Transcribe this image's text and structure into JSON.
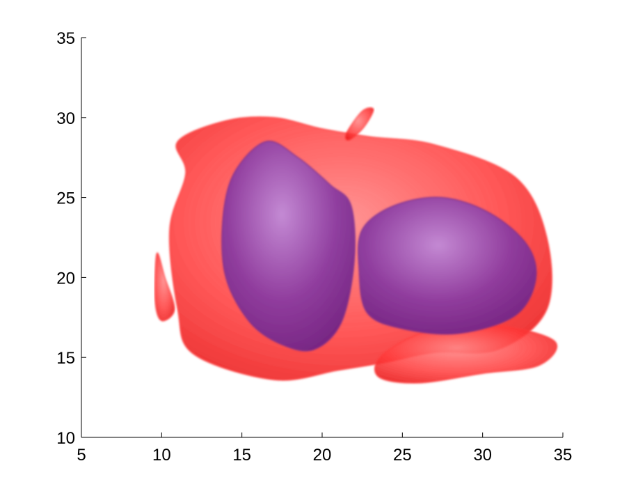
{
  "chart_data": {
    "type": "isosurface",
    "title": "",
    "xlabel": "",
    "ylabel": "",
    "xlim": [
      5,
      35
    ],
    "ylim": [
      10,
      35
    ],
    "xticks": [
      "5",
      "10",
      "15",
      "20",
      "25",
      "30",
      "35"
    ],
    "yticks": [
      "10",
      "15",
      "20",
      "25",
      "30",
      "35"
    ],
    "grid": false,
    "legend": "none",
    "colors": {
      "outer_surface": "#ff3a3a",
      "inner_surface": "#7a2b8f"
    },
    "surfaces": [
      {
        "layer": "outer",
        "color": "outer_surface",
        "regions": [
          {
            "x": [
              11,
              14,
              17,
              20,
              23,
              27,
              32,
              34,
              34,
              31,
              27,
              24,
              21,
              17,
              12,
              11,
              10.5,
              11.5
            ],
            "y": [
              28.5,
              29.8,
              30.0,
              29.3,
              28.8,
              28.3,
              26.3,
              22.5,
              18,
              15.5,
              15.3,
              14.7,
              14.2,
              13.6,
              15.2,
              18,
              23,
              26.5
            ]
          },
          {
            "x": [
              23.8,
              27,
              31,
              34.5,
              33.5,
              30,
              26,
              23.5
            ],
            "y": [
              15.2,
              16.8,
              17.0,
              16.0,
              14.5,
              14.0,
              13.4,
              13.8
            ]
          },
          {
            "x": [
              9.7,
              10.2,
              10.8,
              10.0,
              9.6
            ],
            "y": [
              21.5,
              20.0,
              18.0,
              17.3,
              18.5
            ]
          },
          {
            "x": [
              21.5,
              22.5,
              23.2,
              22.6,
              21.7
            ],
            "y": [
              29.0,
              30.4,
              30.5,
              29.4,
              28.6
            ]
          }
        ]
      },
      {
        "layer": "inner",
        "color": "inner_surface",
        "regions": [
          {
            "x": [
              14.5,
              16.5,
              18.5,
              20.5,
              21.8,
              22.0,
              21.2,
              19.5,
              17.5,
              15.5,
              14.0,
              13.8
            ],
            "y": [
              26.5,
              28.5,
              27.5,
              25.8,
              24.5,
              21.0,
              17.2,
              15.5,
              15.8,
              17.2,
              20.0,
              23.5
            ]
          },
          {
            "x": [
              22.5,
              24.5,
              27.5,
              30.5,
              32.8,
              33.3,
              32.0,
              28.5,
              25.0,
              22.8,
              22.3
            ],
            "y": [
              23.0,
              24.5,
              25.0,
              24.0,
              22.0,
              19.8,
              17.6,
              16.5,
              16.8,
              17.8,
              20.5
            ]
          }
        ]
      }
    ]
  }
}
